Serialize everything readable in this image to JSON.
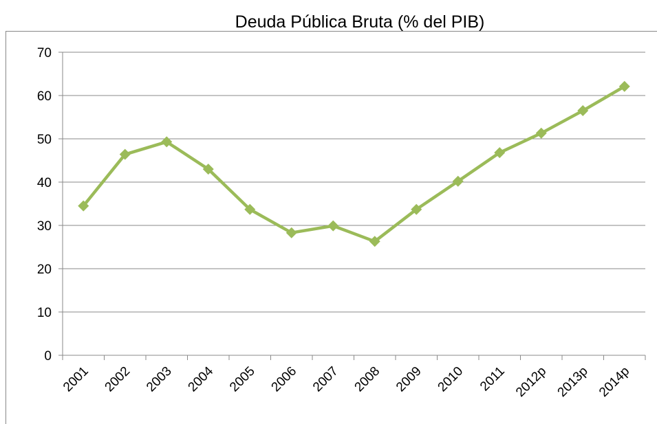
{
  "chart_data": {
    "type": "line",
    "title": "Deuda Pública Bruta (% del PIB)",
    "categories": [
      "2001",
      "2002",
      "2003",
      "2004",
      "2005",
      "2006",
      "2007",
      "2008",
      "2009",
      "2010",
      "2011",
      "2012p",
      "2013p",
      "2014p"
    ],
    "series": [
      {
        "name": "Deuda Pública Bruta",
        "color": "#9bbb59",
        "values": [
          34.5,
          46.4,
          49.3,
          43.0,
          33.7,
          28.3,
          29.9,
          26.3,
          33.7,
          40.2,
          46.8,
          51.3,
          56.5,
          62.1
        ]
      }
    ],
    "ylim": [
      0,
      70
    ],
    "yticks": [
      0,
      10,
      20,
      30,
      40,
      50,
      60,
      70
    ],
    "grid": true,
    "legend": false
  }
}
